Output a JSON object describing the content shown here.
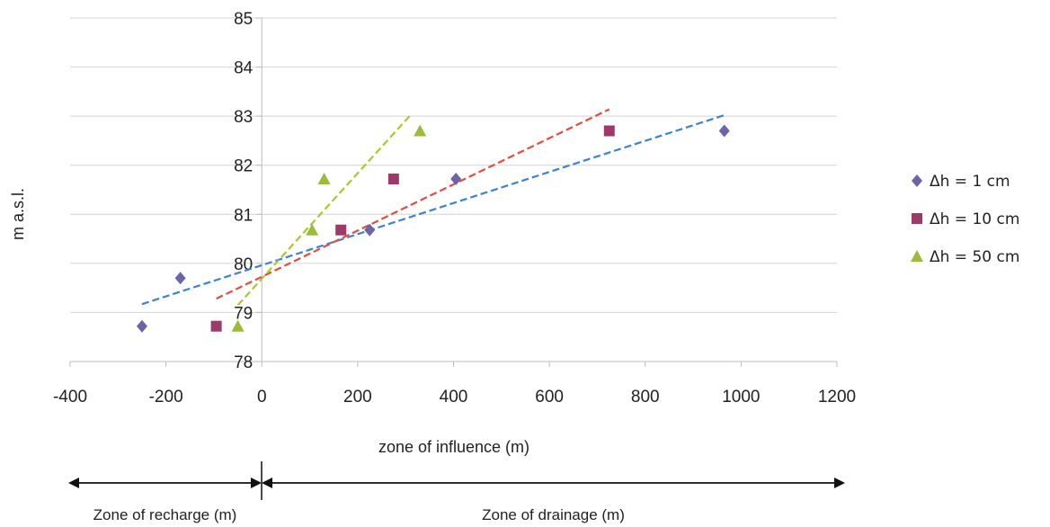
{
  "chart_data": {
    "type": "scatter",
    "title": "",
    "xlabel": "zone of influence (m)",
    "ylabel": "m a.s.l.",
    "xlim": [
      -400,
      1200
    ],
    "ylim": [
      78,
      85
    ],
    "x_ticks": [
      -400,
      -200,
      0,
      200,
      400,
      600,
      800,
      1000,
      1200
    ],
    "y_ticks": [
      78,
      79,
      80,
      81,
      82,
      83,
      84,
      85
    ],
    "grid": "horizontal",
    "legend": "right",
    "series": [
      {
        "name": "Δh = 1 cm",
        "marker": "diamond",
        "color": "#6b64a8",
        "points": [
          [
            -250,
            78.72
          ],
          [
            -170,
            79.7
          ],
          [
            225,
            80.68
          ],
          [
            405,
            81.72
          ],
          [
            965,
            82.7
          ]
        ],
        "trendline": {
          "x": [
            -250,
            965
          ],
          "y": [
            79.17,
            83.02
          ],
          "color": "#3a83d6"
        }
      },
      {
        "name": "Δh = 10 cm",
        "marker": "square",
        "color": "#9e3a6a",
        "points": [
          [
            -95,
            78.72
          ],
          [
            165,
            80.68
          ],
          [
            275,
            81.72
          ],
          [
            725,
            82.7
          ]
        ],
        "trendline": {
          "x": [
            -95,
            725
          ],
          "y": [
            79.28,
            83.14
          ],
          "color": "#e84b3c"
        }
      },
      {
        "name": "Δh = 50 cm",
        "marker": "triangle",
        "color": "#9bbb3a",
        "points": [
          [
            -50,
            78.72
          ],
          [
            105,
            80.68
          ],
          [
            130,
            81.72
          ],
          [
            330,
            82.7
          ]
        ],
        "trendline": {
          "x": [
            -50,
            310
          ],
          "y": [
            79.15,
            83.02
          ],
          "color": "#a6ca2e"
        }
      }
    ],
    "zones": [
      {
        "label": "Zone of recharge (m)",
        "from": -400,
        "to": 0
      },
      {
        "label": "Zone of drainage (m)",
        "from": 0,
        "to": 1200
      }
    ]
  }
}
